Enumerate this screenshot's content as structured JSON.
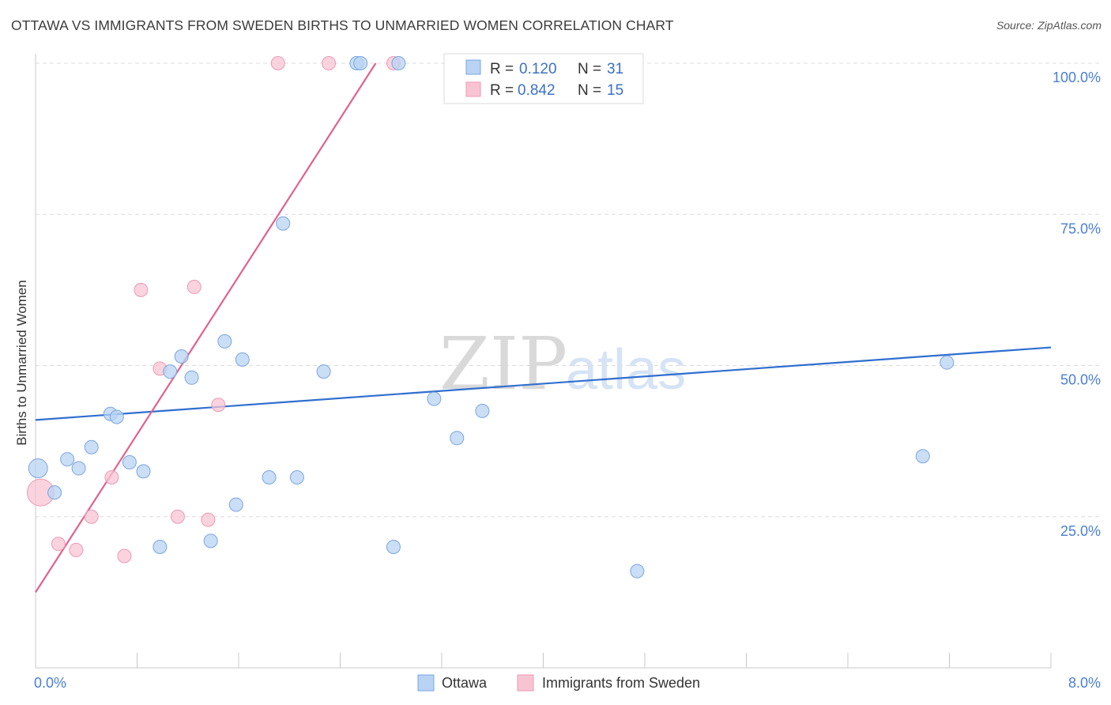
{
  "header": {
    "title": "OTTAWA VS IMMIGRANTS FROM SWEDEN BIRTHS TO UNMARRIED WOMEN CORRELATION CHART",
    "source": "Source: ZipAtlas.com"
  },
  "watermark": {
    "zip": "ZIP",
    "atlas": "atlas"
  },
  "legend": {
    "r_label": "R =",
    "n_label": "N =",
    "rows": [
      {
        "series": "Ottawa",
        "r": "0.120",
        "n": "31"
      },
      {
        "series": "Immigrants from Sweden",
        "r": "0.842",
        "n": "15"
      }
    ]
  },
  "bottom_legend": [
    "Ottawa",
    "Immigrants from Sweden"
  ],
  "colors": {
    "ottawa_fill": "#b8d3f3",
    "ottawa_stroke": "#7aa6e0",
    "ottawa_line": "#2f6fcf",
    "sweden_fill": "#f8c4d4",
    "sweden_stroke": "#ec9ab4",
    "sweden_line": "#e0628c",
    "tick_text": "#4a7fd4",
    "grid": "#dcdcdc"
  },
  "chart_data": {
    "type": "scatter",
    "title": "OTTAWA VS IMMIGRANTS FROM SWEDEN BIRTHS TO UNMARRIED WOMEN CORRELATION CHART",
    "xlabel": "",
    "ylabel": "Births to Unmarried Women",
    "xlim": [
      0,
      8
    ],
    "ylim": [
      0,
      100
    ],
    "x_tick_labels": [
      "0.0%",
      "8.0%"
    ],
    "y_ticks": [
      25,
      50,
      75,
      100
    ],
    "y_tick_labels": [
      "25.0%",
      "50.0%",
      "75.0%",
      "100.0%"
    ],
    "grid": true,
    "series": [
      {
        "name": "Ottawa",
        "r": 0.12,
        "n": 31,
        "points": [
          [
            0.02,
            33.0
          ],
          [
            0.15,
            29.0
          ],
          [
            0.25,
            34.5
          ],
          [
            0.34,
            33.0
          ],
          [
            0.44,
            36.5
          ],
          [
            0.59,
            42.0
          ],
          [
            0.64,
            41.5
          ],
          [
            0.74,
            34.0
          ],
          [
            0.85,
            32.5
          ],
          [
            0.98,
            20.0
          ],
          [
            1.06,
            49.0
          ],
          [
            1.15,
            51.5
          ],
          [
            1.23,
            48.0
          ],
          [
            1.38,
            21.0
          ],
          [
            1.49,
            54.0
          ],
          [
            1.58,
            27.0
          ],
          [
            1.63,
            51.0
          ],
          [
            1.84,
            31.5
          ],
          [
            1.95,
            73.5
          ],
          [
            2.06,
            31.5
          ],
          [
            2.27,
            49.0
          ],
          [
            2.53,
            100
          ],
          [
            2.56,
            100
          ],
          [
            2.86,
            100
          ],
          [
            2.82,
            20.0
          ],
          [
            3.14,
            44.5
          ],
          [
            3.32,
            38.0
          ],
          [
            3.52,
            42.5
          ],
          [
            4.74,
            16.0
          ],
          [
            6.99,
            35.0
          ],
          [
            7.18,
            50.5
          ]
        ],
        "trend": {
          "x": [
            0,
            8
          ],
          "y": [
            41.0,
            53.0
          ]
        }
      },
      {
        "name": "Immigrants from Sweden",
        "r": 0.842,
        "n": 15,
        "points": [
          [
            0.04,
            29.0
          ],
          [
            0.18,
            20.5
          ],
          [
            0.32,
            19.5
          ],
          [
            0.44,
            25.0
          ],
          [
            0.6,
            31.5
          ],
          [
            0.7,
            18.5
          ],
          [
            0.83,
            62.5
          ],
          [
            0.98,
            49.5
          ],
          [
            1.12,
            25.0
          ],
          [
            1.25,
            63.0
          ],
          [
            1.36,
            24.5
          ],
          [
            1.44,
            43.5
          ],
          [
            1.91,
            100
          ],
          [
            2.31,
            100
          ],
          [
            2.82,
            100
          ]
        ],
        "trend": {
          "x": [
            0,
            2.68
          ],
          "y": [
            12.5,
            100
          ]
        }
      }
    ]
  }
}
